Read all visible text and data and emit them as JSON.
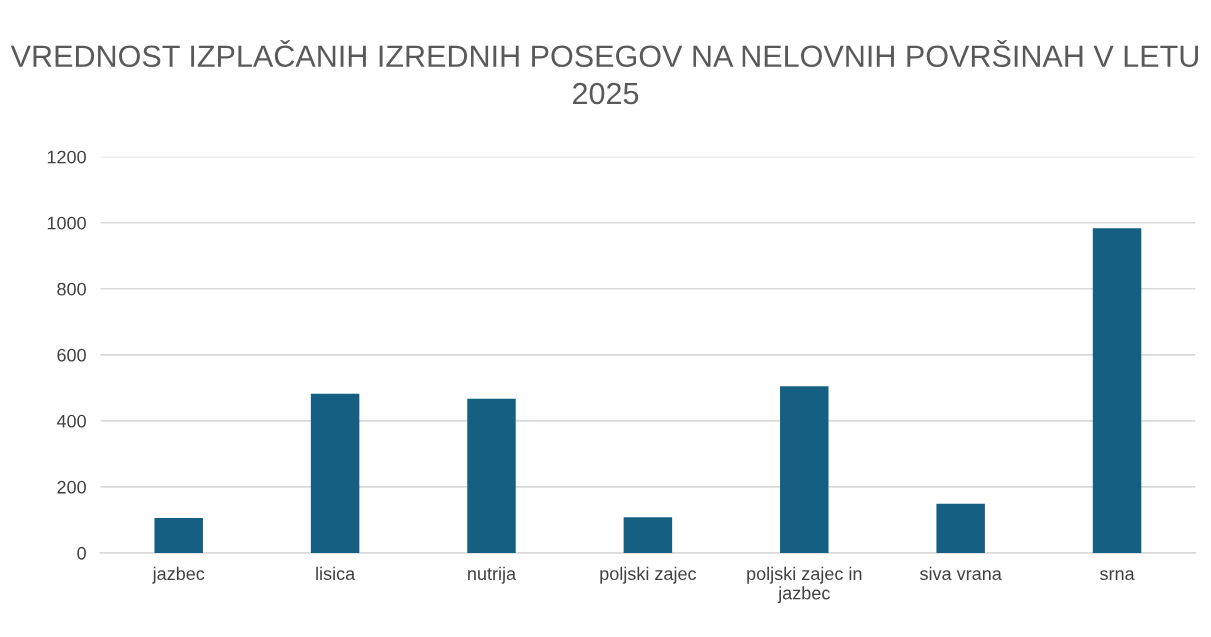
{
  "chart_data": {
    "type": "bar",
    "title": "VREDNOST IZPLAČANIH IZREDNIH POSEGOV NA NELOVNIH POVRŠINAH V LETU 2025",
    "categories": [
      "jazbec",
      "lisica",
      "nutrija",
      "poljski zajec",
      "poljski zajec in\njazbec",
      "siva vrana",
      "srna"
    ],
    "values": [
      106,
      482,
      467,
      108,
      505,
      149,
      983
    ],
    "color": "#156082",
    "ylim": [
      0,
      1200
    ],
    "yticks": [
      0,
      200,
      400,
      600,
      800,
      1000,
      1200
    ],
    "grid": "y"
  }
}
